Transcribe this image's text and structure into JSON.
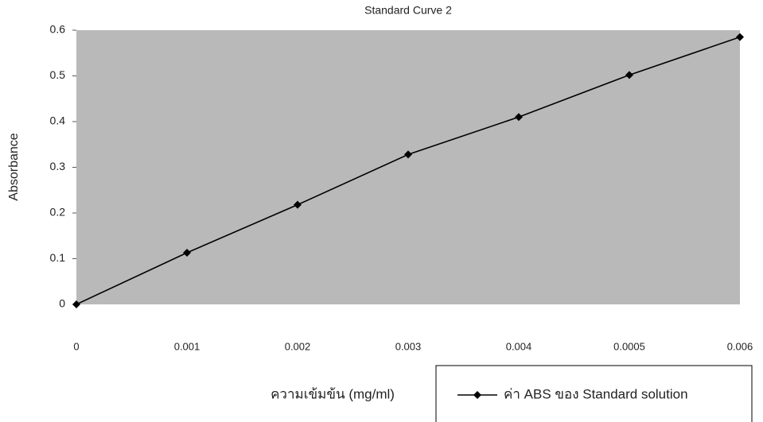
{
  "chart_data": {
    "type": "line",
    "title": "Standard Curve 2",
    "x_label": "ความเข้มข้น (mg/ml)",
    "y_label": "Absorbance",
    "categories": [
      "0",
      "0.001",
      "0.002",
      "0.003",
      "0.004",
      "0.0005",
      "0.006"
    ],
    "series": [
      {
        "name": "ค่า ABS ของ Standard solution",
        "color": "#000000",
        "values": [
          0,
          0.113,
          0.218,
          0.328,
          0.41,
          0.502,
          0.585
        ]
      }
    ],
    "ylim": [
      0,
      0.6
    ],
    "yticks": [
      0,
      0.1,
      0.2,
      0.3,
      0.4,
      0.5,
      0.6
    ],
    "grid": false,
    "plot_background": "#b9b9b9",
    "legend": "bottom-right"
  }
}
